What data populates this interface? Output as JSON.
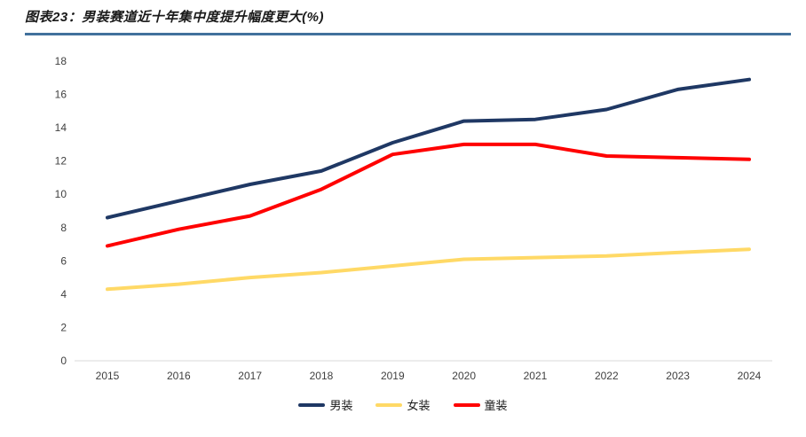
{
  "page": {
    "title": "图表23：男装赛道近十年集中度提升幅度更大(%)",
    "rule_color": "#41719c",
    "background": "#ffffff"
  },
  "chart_data": {
    "type": "line",
    "title": "图表23：男装赛道近十年集中度提升幅度更大(%)",
    "categories": [
      "2015",
      "2016",
      "2017",
      "2018",
      "2019",
      "2020",
      "2021",
      "2022",
      "2023",
      "2024"
    ],
    "series": [
      {
        "key": "menswear",
        "name": "男装",
        "color": "#1f3864",
        "values": [
          8.6,
          9.6,
          10.6,
          11.4,
          13.1,
          14.4,
          14.5,
          15.1,
          16.3,
          16.9
        ]
      },
      {
        "key": "womenswear",
        "name": "女装",
        "color": "#ffd966",
        "values": [
          4.3,
          4.6,
          5.0,
          5.3,
          5.7,
          6.1,
          6.2,
          6.3,
          6.5,
          6.7
        ]
      },
      {
        "key": "kidswear",
        "name": "童装",
        "color": "#ff0000",
        "values": [
          6.9,
          7.9,
          8.7,
          10.3,
          12.4,
          13.0,
          13.0,
          12.3,
          12.2,
          12.1
        ]
      }
    ],
    "ylim": [
      0,
      18
    ],
    "ytick_step": 2,
    "yticks": [
      0,
      2,
      4,
      6,
      8,
      10,
      12,
      14,
      16,
      18
    ],
    "grid": false,
    "legend_position": "bottom",
    "axis_color": "#d9d9d9",
    "tick_label_color": "#3f3f3f",
    "line_width": 4
  }
}
